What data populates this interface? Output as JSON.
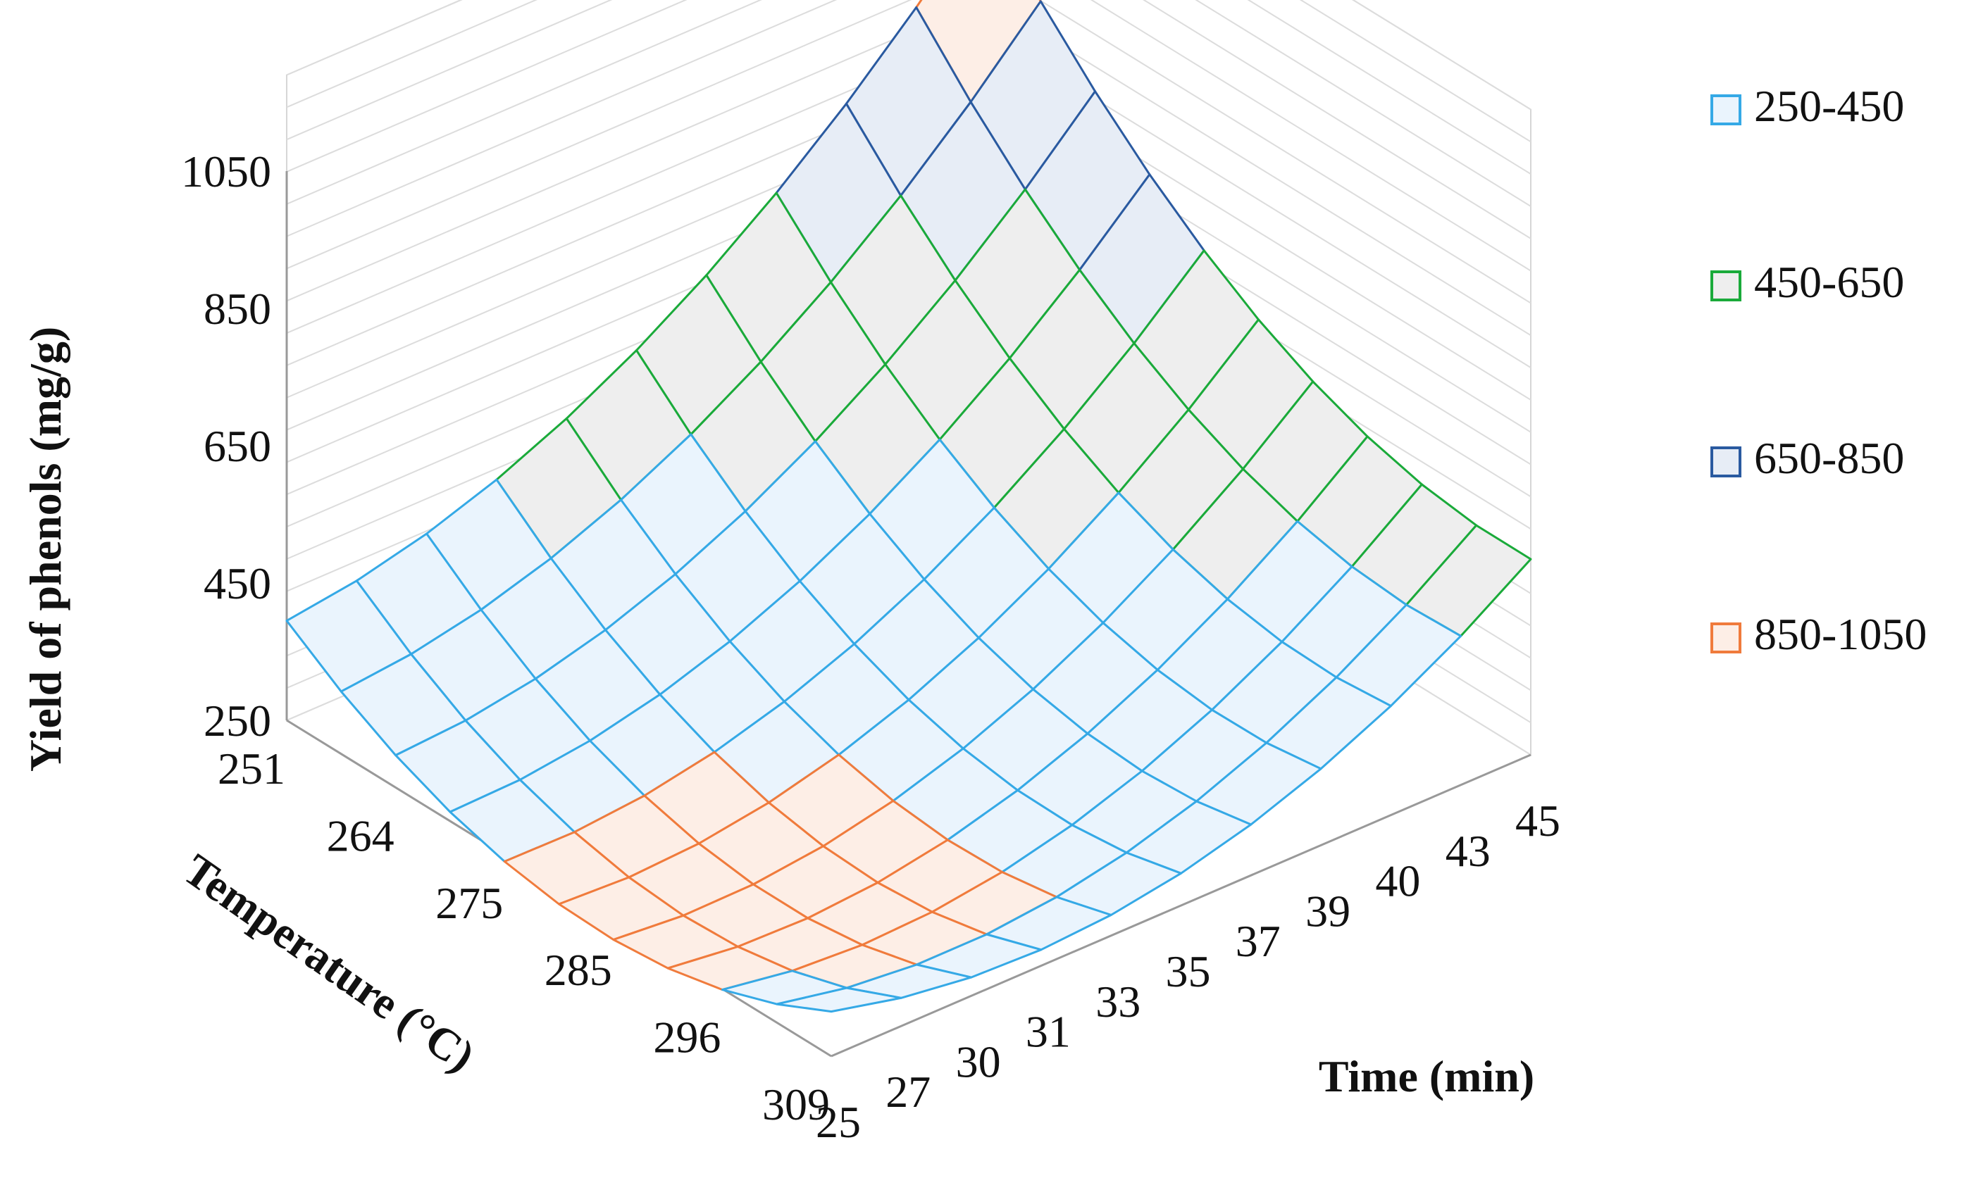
{
  "chart_data": {
    "type": "surface3d",
    "title": "",
    "ylabel": "Yield of phenols (mg/g)",
    "xlabel": "Temperature (°C)",
    "zlabel": "Time (min)",
    "yticks": [
      "250",
      "450",
      "650",
      "850",
      "1050"
    ],
    "ylim": [
      250,
      1050
    ],
    "temperature_ticks": [
      "251",
      "264",
      "275",
      "285",
      "296",
      "309"
    ],
    "time_ticks": [
      "25",
      "27",
      "30",
      "31",
      "33",
      "35",
      "37",
      "39",
      "40",
      "43",
      "45"
    ],
    "temperature_range": [
      251,
      309
    ],
    "time_range": [
      25,
      45
    ],
    "grid": true,
    "legend_position": "right",
    "legend": [
      {
        "label": "250-450",
        "min": 250,
        "max": 450,
        "stroke": "#35a9e6",
        "fill": "#eaf4fd"
      },
      {
        "label": "450-650",
        "min": 450,
        "max": 650,
        "stroke": "#1aaa3a",
        "fill": "#eeeeee"
      },
      {
        "label": "650-850",
        "min": 650,
        "max": 850,
        "stroke": "#2a5aa0",
        "fill": "#e7edf6"
      },
      {
        "label": "850-1050",
        "min": 850,
        "max": 1050,
        "stroke": "#f07b3c",
        "fill": "#fdeee6"
      }
    ],
    "surface_corners": {
      "temp_251_time_25": 395,
      "temp_309_time_25": 315,
      "temp_251_time_45": 1000,
      "temp_309_time_45": 535
    },
    "surface_min": 305
  }
}
